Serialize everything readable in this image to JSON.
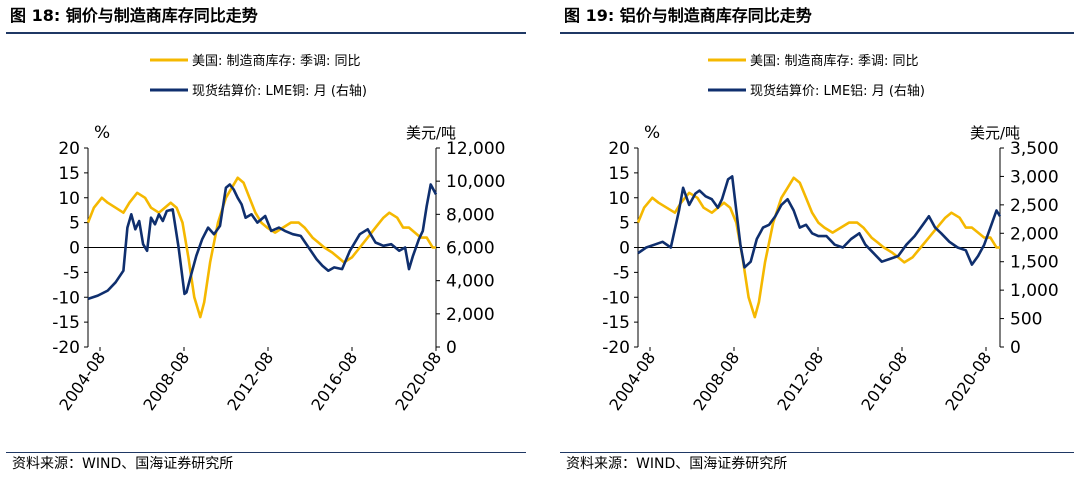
{
  "colors": {
    "inventory": "#f5b800",
    "price": "#0f2f6e",
    "frame": "#1f3864"
  },
  "figures": [
    {
      "title": "图 18:  铜价与制造商库存同比走势",
      "source": "资料来源：WIND、国海证券研究所",
      "chart_data": {
        "type": "line",
        "left_unit": "%",
        "right_unit": "美元/吨",
        "left_ticks": [
          "20",
          "15",
          "10",
          "5",
          "0",
          "-5",
          "-10",
          "-15",
          "-20"
        ],
        "right_ticks": [
          "12,000",
          "10,000",
          "8,000",
          "6,000",
          "4,000",
          "2,000",
          "0"
        ],
        "x_ticks": [
          "2004-08",
          "2008-08",
          "2012-08",
          "2016-08",
          "2020-08"
        ],
        "ylim_left": [
          -20,
          20
        ],
        "ylim_right": [
          0,
          12000
        ],
        "xlim": [
          2004.0,
          2021.67
        ],
        "legend_position": "top-center",
        "series": [
          {
            "name": "美国: 制造商库存: 季调: 同比",
            "axis": "left",
            "color": "#f5b800",
            "x": [
              2004.0,
              2004.3,
              2004.7,
              2005.0,
              2005.4,
              2005.8,
              2006.1,
              2006.5,
              2006.9,
              2007.2,
              2007.6,
              2007.9,
              2008.2,
              2008.5,
              2008.8,
              2009.1,
              2009.4,
              2009.7,
              2009.9,
              2010.2,
              2010.6,
              2011.0,
              2011.3,
              2011.6,
              2011.9,
              2012.2,
              2012.5,
              2012.8,
              2013.1,
              2013.5,
              2013.9,
              2014.3,
              2014.7,
              2015.0,
              2015.4,
              2015.7,
              2016.0,
              2016.4,
              2016.7,
              2017.0,
              2017.4,
              2017.8,
              2018.2,
              2018.6,
              2019.0,
              2019.3,
              2019.7,
              2020.0,
              2020.3,
              2020.6,
              2020.9,
              2021.2,
              2021.5,
              2021.67
            ],
            "y": [
              5,
              8,
              10,
              9,
              8,
              7,
              9,
              11,
              10,
              8,
              7,
              8,
              9,
              8,
              5,
              -2,
              -10,
              -14,
              -11,
              -3,
              5,
              10,
              12,
              14,
              13,
              10,
              7,
              5,
              4,
              3,
              4,
              5,
              5,
              4,
              2,
              1,
              0,
              -1,
              -2,
              -3,
              -2,
              0,
              2,
              4,
              6,
              7,
              6,
              4,
              4,
              3,
              2,
              2,
              0,
              0
            ]
          },
          {
            "name": "现货结算价: LME铜: 月 (右轴)",
            "axis": "right",
            "color": "#0f2f6e",
            "x": [
              2004.0,
              2004.5,
              2005.0,
              2005.4,
              2005.8,
              2006.0,
              2006.2,
              2006.4,
              2006.6,
              2006.8,
              2007.0,
              2007.2,
              2007.4,
              2007.6,
              2007.8,
              2008.0,
              2008.3,
              2008.6,
              2008.9,
              2009.0,
              2009.2,
              2009.5,
              2009.8,
              2010.1,
              2010.4,
              2010.7,
              2011.0,
              2011.2,
              2011.4,
              2011.6,
              2011.8,
              2012.0,
              2012.3,
              2012.6,
              2013.0,
              2013.3,
              2013.7,
              2014.0,
              2014.4,
              2014.8,
              2015.2,
              2015.6,
              2015.9,
              2016.2,
              2016.5,
              2016.9,
              2017.3,
              2017.8,
              2018.2,
              2018.6,
              2019.0,
              2019.4,
              2019.8,
              2020.1,
              2020.3,
              2020.5,
              2020.8,
              2021.0,
              2021.2,
              2021.4,
              2021.67
            ],
            "y": [
              2900,
              3100,
              3400,
              3900,
              4600,
              7200,
              8000,
              7100,
              7600,
              6200,
              5800,
              7800,
              7400,
              8000,
              7600,
              8200,
              8300,
              6000,
              3200,
              3300,
              4200,
              5500,
              6500,
              7200,
              6800,
              7300,
              9600,
              9800,
              9500,
              9000,
              8600,
              7800,
              8000,
              7500,
              7900,
              7000,
              7200,
              7000,
              6800,
              6700,
              6000,
              5300,
              4900,
              4600,
              4800,
              4700,
              5800,
              6800,
              7100,
              6300,
              6100,
              6200,
              5800,
              6000,
              4700,
              5500,
              6500,
              7000,
              8500,
              9800,
              9200
            ]
          }
        ]
      }
    },
    {
      "title": "图 19:  铝价与制造商库存同比走势",
      "source": "资料来源：WIND、国海证券研究所",
      "chart_data": {
        "type": "line",
        "left_unit": "%",
        "right_unit": "美元/吨",
        "left_ticks": [
          "20",
          "15",
          "10",
          "5",
          "0",
          "-5",
          "-10",
          "-15",
          "-20"
        ],
        "right_ticks": [
          "3,500",
          "3,000",
          "2,500",
          "2,000",
          "1,500",
          "1,000",
          "500",
          "0"
        ],
        "x_ticks": [
          "2004-08",
          "2008-08",
          "2012-08",
          "2016-08",
          "2020-08"
        ],
        "ylim_left": [
          -20,
          20
        ],
        "ylim_right": [
          0,
          3500
        ],
        "xlim": [
          2004.0,
          2021.67
        ],
        "legend_position": "top-center",
        "series": [
          {
            "name": "美国: 制造商库存: 季调: 同比",
            "axis": "left",
            "color": "#f5b800",
            "x": [
              2004.0,
              2004.3,
              2004.7,
              2005.0,
              2005.4,
              2005.8,
              2006.1,
              2006.5,
              2006.9,
              2007.2,
              2007.6,
              2007.9,
              2008.2,
              2008.5,
              2008.8,
              2009.1,
              2009.4,
              2009.7,
              2009.9,
              2010.2,
              2010.6,
              2011.0,
              2011.3,
              2011.6,
              2011.9,
              2012.2,
              2012.5,
              2012.8,
              2013.1,
              2013.5,
              2013.9,
              2014.3,
              2014.7,
              2015.0,
              2015.4,
              2015.7,
              2016.0,
              2016.4,
              2016.7,
              2017.0,
              2017.4,
              2017.8,
              2018.2,
              2018.6,
              2019.0,
              2019.3,
              2019.7,
              2020.0,
              2020.3,
              2020.6,
              2020.9,
              2021.2,
              2021.5,
              2021.67
            ],
            "y": [
              5,
              8,
              10,
              9,
              8,
              7,
              9,
              11,
              10,
              8,
              7,
              8,
              9,
              8,
              5,
              -2,
              -10,
              -14,
              -11,
              -3,
              5,
              10,
              12,
              14,
              13,
              10,
              7,
              5,
              4,
              3,
              4,
              5,
              5,
              4,
              2,
              1,
              0,
              -1,
              -2,
              -3,
              -2,
              0,
              2,
              4,
              6,
              7,
              6,
              4,
              4,
              3,
              2,
              2,
              0,
              0
            ]
          },
          {
            "name": "现货结算价: LME铝: 月 (右轴)",
            "axis": "right",
            "color": "#0f2f6e",
            "x": [
              2004.0,
              2004.4,
              2004.8,
              2005.2,
              2005.6,
              2006.0,
              2006.2,
              2006.5,
              2006.8,
              2007.0,
              2007.3,
              2007.6,
              2007.9,
              2008.1,
              2008.4,
              2008.6,
              2008.8,
              2009.0,
              2009.2,
              2009.5,
              2009.8,
              2010.1,
              2010.4,
              2010.7,
              2011.0,
              2011.3,
              2011.6,
              2011.9,
              2012.2,
              2012.5,
              2012.8,
              2013.2,
              2013.6,
              2014.0,
              2014.4,
              2014.8,
              2015.1,
              2015.5,
              2015.9,
              2016.3,
              2016.7,
              2017.1,
              2017.5,
              2017.9,
              2018.2,
              2018.5,
              2018.8,
              2019.2,
              2019.6,
              2020.0,
              2020.3,
              2020.6,
              2020.9,
              2021.2,
              2021.5,
              2021.67
            ],
            "y": [
              1650,
              1750,
              1800,
              1850,
              1750,
              2400,
              2800,
              2500,
              2700,
              2750,
              2650,
              2600,
              2450,
              2600,
              2950,
              3000,
              2400,
              1800,
              1400,
              1500,
              1900,
              2100,
              2150,
              2300,
              2500,
              2600,
              2400,
              2100,
              2150,
              2000,
              1950,
              1950,
              1800,
              1750,
              1900,
              2000,
              1800,
              1650,
              1500,
              1550,
              1600,
              1800,
              1950,
              2150,
              2300,
              2100,
              2000,
              1850,
              1750,
              1700,
              1450,
              1600,
              1800,
              2100,
              2400,
              2300
            ]
          }
        ]
      }
    }
  ]
}
